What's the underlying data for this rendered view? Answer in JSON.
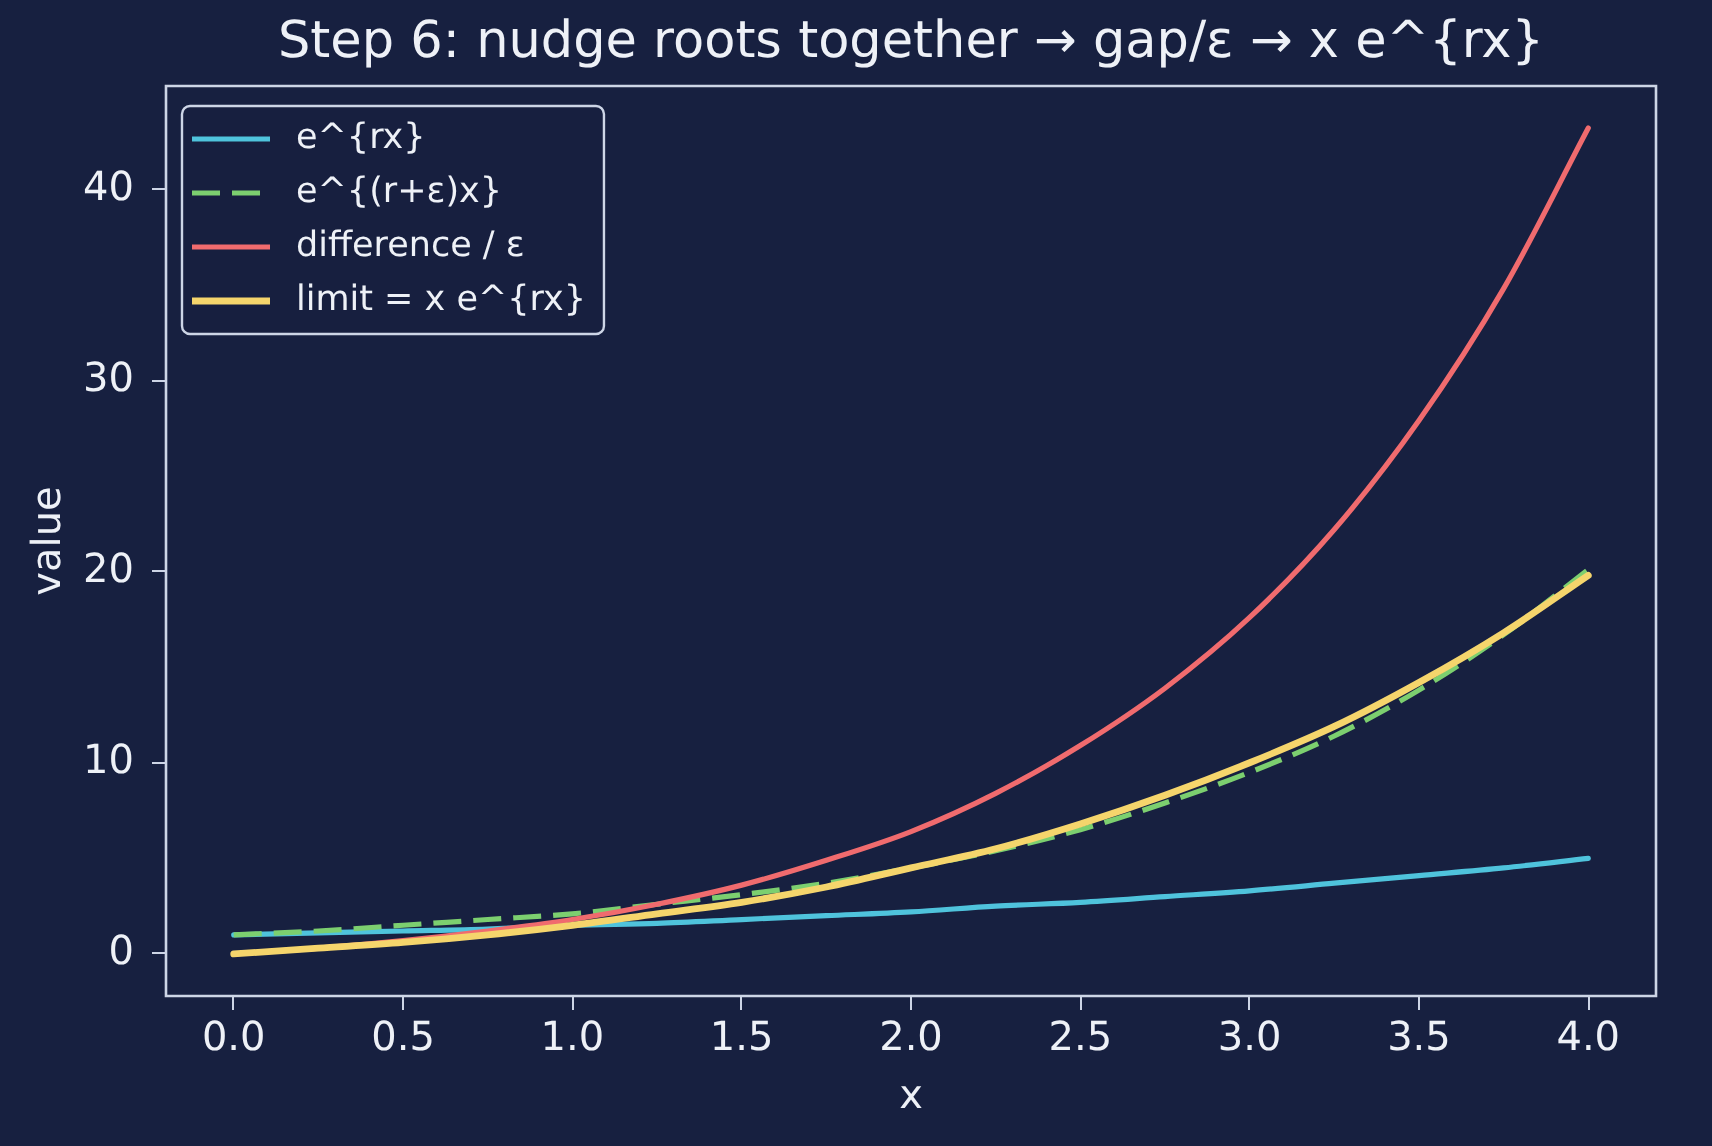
{
  "chart_data": {
    "type": "line",
    "title": "Step 6: nudge roots together → gap/ε → x e^{rx}",
    "xlabel": "x",
    "ylabel": "value",
    "x": [
      0,
      0.25,
      0.5,
      0.75,
      1,
      1.25,
      1.5,
      1.75,
      2,
      2.25,
      2.5,
      2.75,
      3,
      3.25,
      3.5,
      3.75,
      4
    ],
    "series": [
      {
        "name": "e^{rx}",
        "color": "#4fc3dc",
        "values": [
          1.0,
          1.1,
          1.2,
          1.3,
          1.5,
          1.6,
          1.8,
          2.0,
          2.2,
          2.5,
          2.7,
          3.0,
          3.3,
          3.7,
          4.1,
          4.5,
          5.0
        ]
      },
      {
        "name": "e^{(r+ε)x}",
        "color": "#7ccf6f",
        "line_style": "dashed",
        "values": [
          1.0,
          1.2,
          1.5,
          1.8,
          2.1,
          2.6,
          3.1,
          3.7,
          4.5,
          5.4,
          6.5,
          7.9,
          9.5,
          11.4,
          13.8,
          16.7,
          20.1
        ]
      },
      {
        "name": "difference / ε",
        "color": "#f06b6e",
        "values": [
          0.0,
          0.3,
          0.7,
          1.2,
          1.8,
          2.6,
          3.6,
          4.9,
          6.4,
          8.4,
          10.9,
          13.9,
          17.6,
          22.2,
          27.9,
          34.8,
          43.2
        ]
      },
      {
        "name": "limit = x e^{rx}",
        "color": "#f5d56c",
        "values": [
          0.0,
          0.3,
          0.6,
          1.0,
          1.5,
          2.1,
          2.7,
          3.5,
          4.5,
          5.5,
          6.8,
          8.3,
          10.0,
          11.9,
          14.2,
          16.8,
          19.8
        ]
      }
    ],
    "xlim": [
      -0.2,
      4.2
    ],
    "xticks": [
      {
        "value": 0,
        "label": "0.0"
      },
      {
        "value": 0.5,
        "label": "0.5"
      },
      {
        "value": 1,
        "label": "1.0"
      },
      {
        "value": 1.5,
        "label": "1.5"
      },
      {
        "value": 2,
        "label": "2.0"
      },
      {
        "value": 2.5,
        "label": "2.5"
      },
      {
        "value": 3,
        "label": "3.0"
      },
      {
        "value": 3.5,
        "label": "3.5"
      },
      {
        "value": 4,
        "label": "4.0"
      }
    ],
    "ylim": [
      -2.2,
      45.4
    ],
    "yticks": [
      0,
      10,
      20,
      30,
      40
    ],
    "grid": false,
    "legend": "top left",
    "marker": "none",
    "line_style": "solid"
  }
}
